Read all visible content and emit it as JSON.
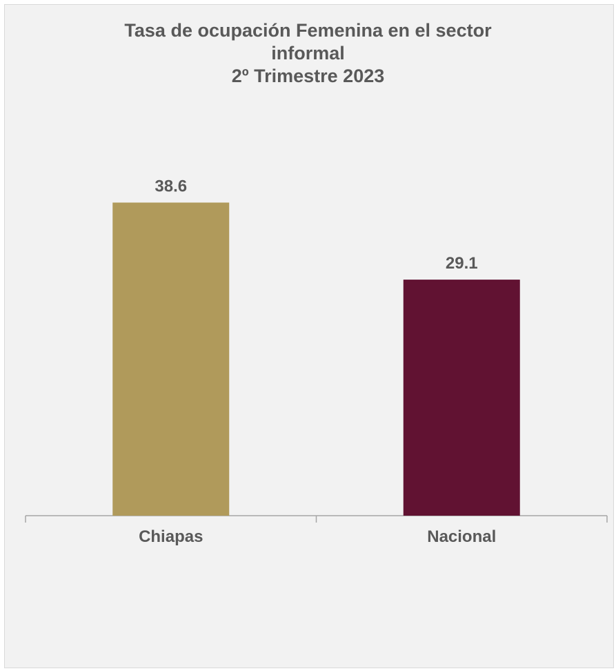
{
  "chart_data": {
    "type": "bar",
    "title_lines": [
      "Tasa de ocupación Femenina en el sector",
      "informal",
      "2º Trimestre 2023"
    ],
    "categories": [
      "Chiapas",
      "Nacional"
    ],
    "values": [
      38.6,
      29.1
    ],
    "value_labels": [
      "38.6",
      "29.1"
    ],
    "colors": [
      "#b09a5b",
      "#611232"
    ],
    "ylim": [
      0,
      45
    ],
    "grid": false,
    "legend": "none"
  }
}
